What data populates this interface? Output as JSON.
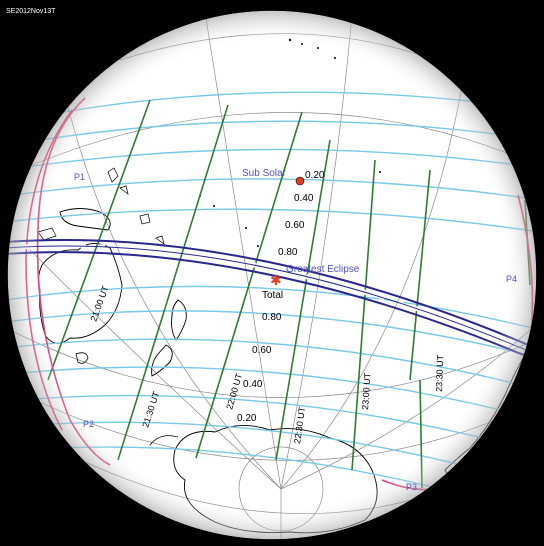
{
  "header": {
    "code": "SE2012Nov13T"
  },
  "points": {
    "sub_solar": "Sub Solar",
    "greatest_eclipse": "Greatest Eclipse",
    "total": "Total"
  },
  "magnitudes": {
    "upper": [
      "0.20",
      "0.40",
      "0.60",
      "0.80"
    ],
    "lower": [
      "0.80",
      "0.60",
      "0.40",
      "0.20"
    ]
  },
  "times": {
    "t2100": "21:00 UT",
    "t2130": "21:30 UT",
    "t2200": "22:00 UT",
    "t2230": "22:30 UT",
    "t2300": "23:00 UT",
    "t2330": "23:30 UT"
  },
  "contacts": {
    "p1": "P1",
    "p2": "P2",
    "p3": "P3",
    "p4": "P4"
  },
  "colors": {
    "background": "#000000",
    "globe": "#ffffff",
    "magnitude_lines": "#78c8e8",
    "time_lines": "#2e7d32",
    "path_of_totality": "#28288c",
    "penumbral_limits": "#e0407a",
    "labels": "#5050c8",
    "marker": "#e04020"
  }
}
